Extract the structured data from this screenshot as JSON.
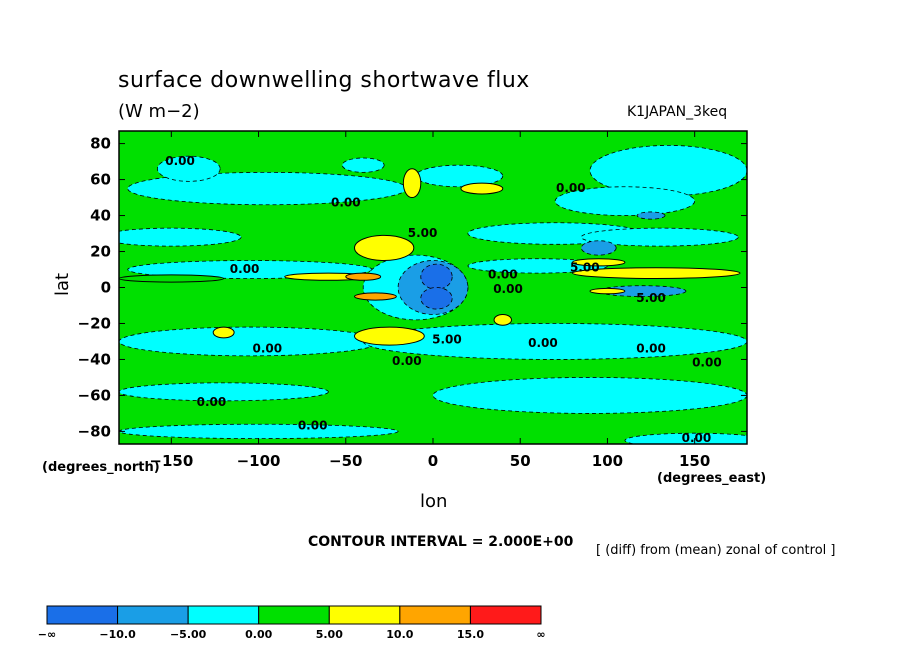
{
  "chart_data": {
    "type": "heatmap",
    "title": "surface downwelling shortwave flux",
    "units": "(W m−2)",
    "run_label": "K1JAPAN_3keq",
    "xlabel": "lon",
    "ylabel": "lat",
    "x_unit_label": "(degrees_east)",
    "y_unit_label": "(degrees_north)",
    "xlim": [
      -180,
      180
    ],
    "ylim": [
      -87,
      87
    ],
    "x_ticks": [
      -150,
      -100,
      -50,
      0,
      50,
      100,
      150
    ],
    "x_tick_labels": [
      "−150",
      "−100",
      "−50",
      "0",
      "50",
      "100",
      "150"
    ],
    "y_ticks": [
      80,
      60,
      40,
      20,
      0,
      -20,
      -40,
      -60,
      -80
    ],
    "y_tick_labels": [
      "80",
      "60",
      "40",
      "20",
      "0",
      "−20",
      "−40",
      "−60",
      "−80"
    ],
    "contour_interval_text": "CONTOUR INTERVAL = 2.000E+00",
    "note": "[ (diff) from (mean) zonal of control ]",
    "colorbar": {
      "bounds": [
        "−∞",
        "−10.0",
        "−5.00",
        "0.00",
        "5.00",
        "10.0",
        "15.0",
        "∞"
      ],
      "colors": [
        "#1a6fe8",
        "#1a9ee6",
        "#00ffff",
        "#00e000",
        "#ffff00",
        "#ffa500",
        "#ff1a1a"
      ]
    },
    "contour_labels": [
      {
        "text": "0.00",
        "lon": -145,
        "lat": 68
      },
      {
        "text": "0.00",
        "lon": -50,
        "lat": 45
      },
      {
        "text": "5.00",
        "lon": -6,
        "lat": 28
      },
      {
        "text": "0.00",
        "lon": -108,
        "lat": 8
      },
      {
        "text": "0.00",
        "lon": 79,
        "lat": 53
      },
      {
        "text": "5.00",
        "lon": 87,
        "lat": 9
      },
      {
        "text": "0.00",
        "lon": 40,
        "lat": 5
      },
      {
        "text": "0.00",
        "lon": 43,
        "lat": -3
      },
      {
        "text": "5.00",
        "lon": 125,
        "lat": -8
      },
      {
        "text": "5.00",
        "lon": 8,
        "lat": -31
      },
      {
        "text": "0.00",
        "lon": 63,
        "lat": -33
      },
      {
        "text": "0.00",
        "lon": -95,
        "lat": -36
      },
      {
        "text": "0.00",
        "lon": -15,
        "lat": -43
      },
      {
        "text": "0.00",
        "lon": 125,
        "lat": -36
      },
      {
        "text": "0.00",
        "lon": 157,
        "lat": -44
      },
      {
        "text": "0.00",
        "lon": -127,
        "lat": -66
      },
      {
        "text": "0.00",
        "lon": -69,
        "lat": -79
      },
      {
        "text": "0.00",
        "lon": 151,
        "lat": -86
      }
    ],
    "regions": [
      {
        "v": -2.5,
        "lon": -95,
        "lat": 55,
        "rx": 80,
        "ry": 9
      },
      {
        "v": -2.5,
        "lon": -140,
        "lat": 66,
        "rx": 18,
        "ry": 7
      },
      {
        "v": -2.5,
        "lon": -40,
        "lat": 68,
        "rx": 12,
        "ry": 4
      },
      {
        "v": -2.5,
        "lon": 15,
        "lat": 62,
        "rx": 25,
        "ry": 6
      },
      {
        "v": -2.5,
        "lon": 135,
        "lat": 65,
        "rx": 45,
        "ry": 14
      },
      {
        "v": -2.5,
        "lon": 110,
        "lat": 48,
        "rx": 40,
        "ry": 8
      },
      {
        "v": -2.5,
        "lon": -150,
        "lat": 28,
        "rx": 40,
        "ry": 5
      },
      {
        "v": -2.5,
        "lon": 70,
        "lat": 30,
        "rx": 50,
        "ry": 6
      },
      {
        "v": -2.5,
        "lon": 130,
        "lat": 28,
        "rx": 45,
        "ry": 5
      },
      {
        "v": -2.5,
        "lon": -105,
        "lat": 10,
        "rx": 70,
        "ry": 5
      },
      {
        "v": -2.5,
        "lon": 60,
        "lat": 12,
        "rx": 40,
        "ry": 4
      },
      {
        "v": -2.5,
        "lon": -105,
        "lat": -30,
        "rx": 75,
        "ry": 8
      },
      {
        "v": -2.5,
        "lon": 70,
        "lat": -30,
        "rx": 110,
        "ry": 10
      },
      {
        "v": -2.5,
        "lon": -120,
        "lat": -58,
        "rx": 60,
        "ry": 5
      },
      {
        "v": -2.5,
        "lon": 90,
        "lat": -60,
        "rx": 90,
        "ry": 10
      },
      {
        "v": -2.5,
        "lon": -100,
        "lat": -80,
        "rx": 80,
        "ry": 4
      },
      {
        "v": -2.5,
        "lon": 150,
        "lat": -85,
        "rx": 40,
        "ry": 4
      },
      {
        "v": -2.5,
        "lon": -10,
        "lat": 0,
        "rx": 30,
        "ry": 18
      },
      {
        "v": -7.5,
        "lon": 0,
        "lat": 0,
        "rx": 20,
        "ry": 15
      },
      {
        "v": -7.5,
        "lon": 95,
        "lat": 22,
        "rx": 10,
        "ry": 4
      },
      {
        "v": -7.5,
        "lon": 125,
        "lat": 40,
        "rx": 8,
        "ry": 2
      },
      {
        "v": -7.5,
        "lon": 120,
        "lat": -2,
        "rx": 25,
        "ry": 3
      },
      {
        "v": -12.5,
        "lon": 2,
        "lat": 6,
        "rx": 9,
        "ry": 7
      },
      {
        "v": -12.5,
        "lon": 2,
        "lat": -6,
        "rx": 9,
        "ry": 6
      },
      {
        "v": 2.5,
        "lon": -150,
        "lat": 5,
        "rx": 30,
        "ry": 2
      },
      {
        "v": 7.5,
        "lon": -28,
        "lat": 22,
        "rx": 17,
        "ry": 7
      },
      {
        "v": 7.5,
        "lon": -12,
        "lat": 58,
        "rx": 5,
        "ry": 8
      },
      {
        "v": 7.5,
        "lon": 28,
        "lat": 55,
        "rx": 12,
        "ry": 3
      },
      {
        "v": 7.5,
        "lon": 128,
        "lat": 8,
        "rx": 48,
        "ry": 3
      },
      {
        "v": 7.5,
        "lon": 95,
        "lat": 14,
        "rx": 15,
        "ry": 2
      },
      {
        "v": 7.5,
        "lon": -25,
        "lat": -27,
        "rx": 20,
        "ry": 5
      },
      {
        "v": 7.5,
        "lon": -60,
        "lat": 6,
        "rx": 25,
        "ry": 2
      },
      {
        "v": 7.5,
        "lon": -120,
        "lat": -25,
        "rx": 6,
        "ry": 3
      },
      {
        "v": 7.5,
        "lon": 40,
        "lat": -18,
        "rx": 5,
        "ry": 3
      },
      {
        "v": 7.5,
        "lon": 100,
        "lat": -2,
        "rx": 10,
        "ry": 1.5
      },
      {
        "v": 12.5,
        "lon": -40,
        "lat": 6,
        "rx": 10,
        "ry": 2
      },
      {
        "v": 12.5,
        "lon": -33,
        "lat": -5,
        "rx": 12,
        "ry": 2
      }
    ]
  }
}
